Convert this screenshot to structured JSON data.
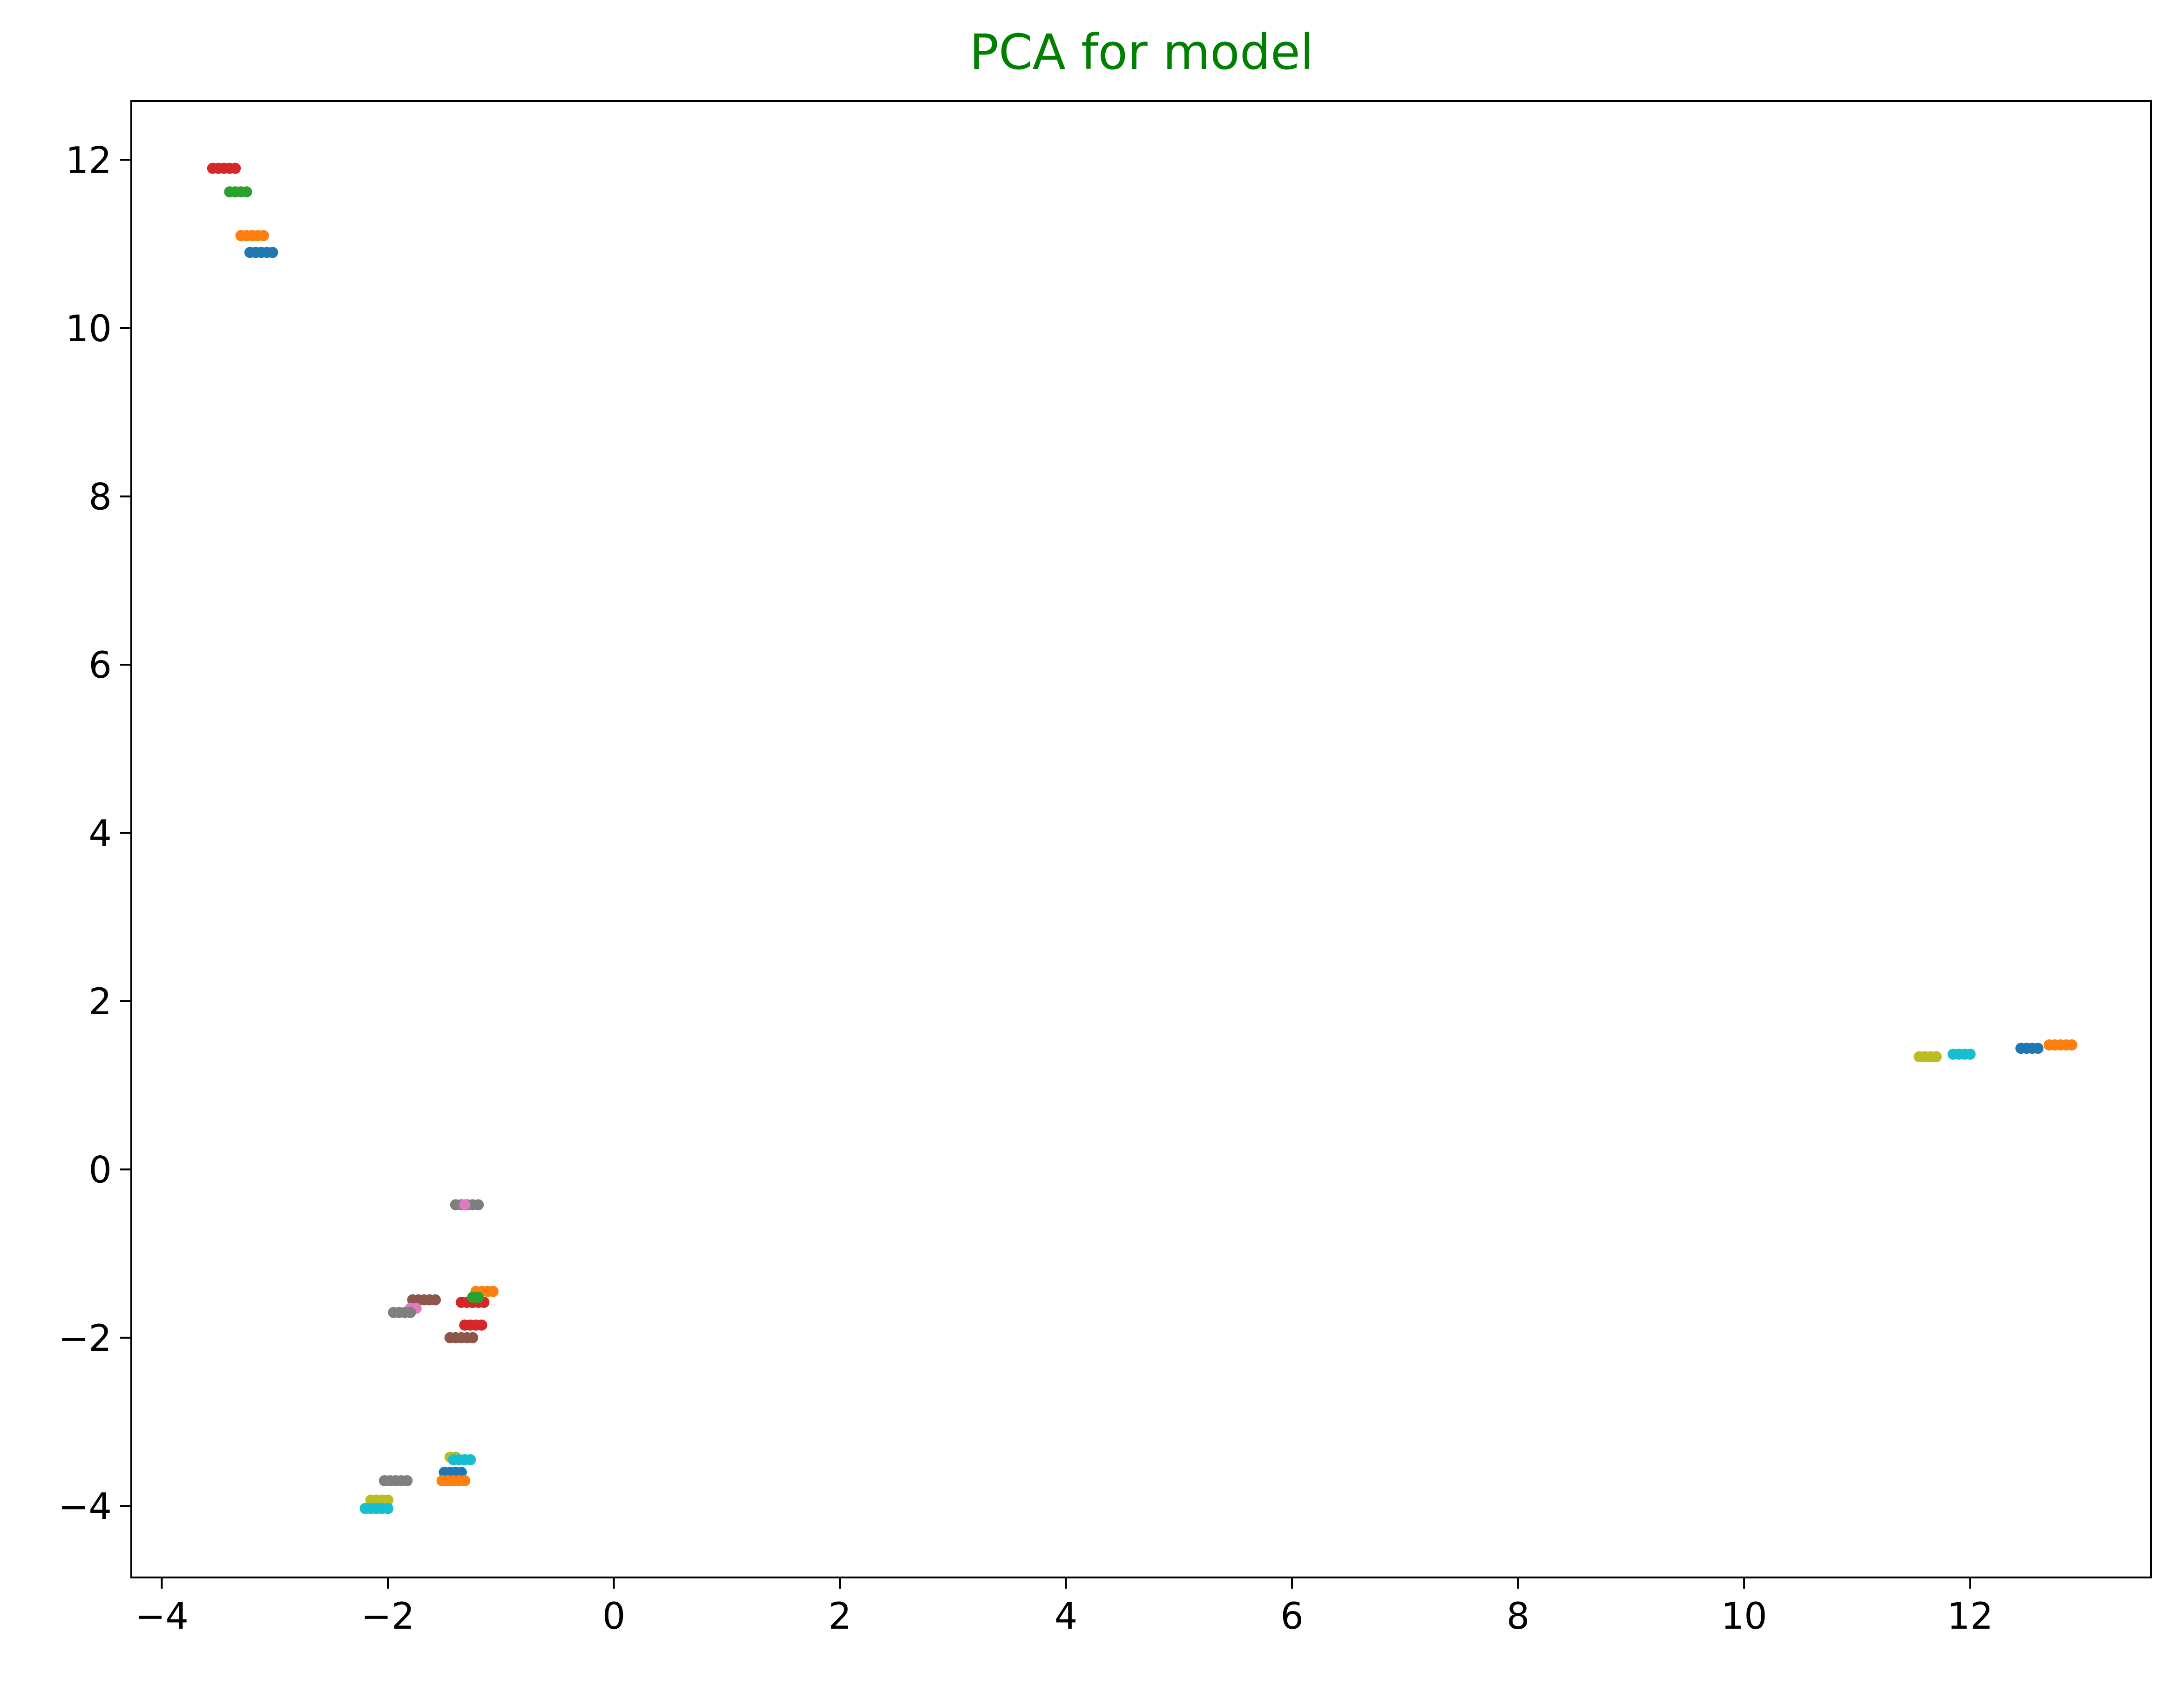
{
  "chart_data": {
    "type": "scatter",
    "title": "PCA for model",
    "title_color": "#008000",
    "xlabel": "",
    "ylabel": "",
    "xlim": [
      -4.27,
      13.6
    ],
    "ylim": [
      -4.85,
      12.7
    ],
    "xticks": [
      -4,
      -2,
      0,
      2,
      4,
      6,
      8,
      10,
      12
    ],
    "xtick_labels": [
      "−4",
      "−2",
      "0",
      "2",
      "4",
      "6",
      "8",
      "10",
      "12"
    ],
    "yticks": [
      -4,
      -2,
      0,
      2,
      4,
      6,
      8,
      10,
      12
    ],
    "ytick_labels": [
      "−4",
      "−2",
      "0",
      "2",
      "4",
      "6",
      "8",
      "10",
      "12"
    ],
    "grid": false,
    "legend": "none",
    "palette": [
      "#1f77b4",
      "#ff7f0e",
      "#2ca02c",
      "#d62728",
      "#9467bd",
      "#8c564b",
      "#e377c2",
      "#7f7f7f",
      "#bcbd22",
      "#17becf"
    ],
    "series": [
      {
        "color": "#d62728",
        "x": [
          -3.55,
          -3.5,
          -3.45,
          -3.4,
          -3.35
        ],
        "y": [
          11.9,
          11.9,
          11.9,
          11.9,
          11.9
        ]
      },
      {
        "color": "#2ca02c",
        "x": [
          -3.4,
          -3.35,
          -3.3,
          -3.25
        ],
        "y": [
          11.62,
          11.62,
          11.62,
          11.62
        ]
      },
      {
        "color": "#ff7f0e",
        "x": [
          -3.3,
          -3.25,
          -3.2,
          -3.15,
          -3.1
        ],
        "y": [
          11.1,
          11.1,
          11.1,
          11.1,
          11.1
        ]
      },
      {
        "color": "#1f77b4",
        "x": [
          -3.22,
          -3.17,
          -3.12,
          -3.07,
          -3.02
        ],
        "y": [
          10.9,
          10.9,
          10.9,
          10.9,
          10.9
        ]
      },
      {
        "color": "#7f7f7f",
        "x": [
          -1.4,
          -1.35,
          -1.3,
          -1.25,
          -1.2
        ],
        "y": [
          -0.42,
          -0.42,
          -0.42,
          -0.42,
          -0.42
        ]
      },
      {
        "color": "#e377c2",
        "x": [
          -1.32
        ],
        "y": [
          -0.42
        ]
      },
      {
        "color": "#d62728",
        "x": [
          -1.35,
          -1.3,
          -1.25,
          -1.2,
          -1.15
        ],
        "y": [
          -1.58,
          -1.58,
          -1.58,
          -1.58,
          -1.58
        ]
      },
      {
        "color": "#ff7f0e",
        "x": [
          -1.22,
          -1.17,
          -1.12,
          -1.07
        ],
        "y": [
          -1.45,
          -1.45,
          -1.45,
          -1.45
        ]
      },
      {
        "color": "#2ca02c",
        "x": [
          -1.25,
          -1.2
        ],
        "y": [
          -1.52,
          -1.52
        ]
      },
      {
        "color": "#8c564b",
        "x": [
          -1.78,
          -1.73,
          -1.68,
          -1.63,
          -1.58
        ],
        "y": [
          -1.55,
          -1.55,
          -1.55,
          -1.55,
          -1.55
        ]
      },
      {
        "color": "#e377c2",
        "x": [
          -1.8,
          -1.75
        ],
        "y": [
          -1.65,
          -1.65
        ]
      },
      {
        "color": "#7f7f7f",
        "x": [
          -1.95,
          -1.9,
          -1.85,
          -1.8
        ],
        "y": [
          -1.7,
          -1.7,
          -1.7,
          -1.7
        ]
      },
      {
        "color": "#d62728",
        "x": [
          -1.32,
          -1.27,
          -1.22,
          -1.17
        ],
        "y": [
          -1.85,
          -1.85,
          -1.85,
          -1.85
        ]
      },
      {
        "color": "#8c564b",
        "x": [
          -1.45,
          -1.4,
          -1.35,
          -1.3,
          -1.25
        ],
        "y": [
          -2.0,
          -2.0,
          -2.0,
          -2.0,
          -2.0
        ]
      },
      {
        "color": "#bcbd22",
        "x": [
          -1.45,
          -1.4
        ],
        "y": [
          -3.42,
          -3.42
        ]
      },
      {
        "color": "#17becf",
        "x": [
          -1.42,
          -1.37,
          -1.32,
          -1.27
        ],
        "y": [
          -3.45,
          -3.45,
          -3.45,
          -3.45
        ]
      },
      {
        "color": "#1f77b4",
        "x": [
          -1.5,
          -1.45,
          -1.4,
          -1.35
        ],
        "y": [
          -3.6,
          -3.6,
          -3.6,
          -3.6
        ]
      },
      {
        "color": "#ff7f0e",
        "x": [
          -1.52,
          -1.47,
          -1.42,
          -1.37,
          -1.32
        ],
        "y": [
          -3.7,
          -3.7,
          -3.7,
          -3.7,
          -3.7
        ]
      },
      {
        "color": "#7f7f7f",
        "x": [
          -2.03,
          -1.98,
          -1.93,
          -1.88,
          -1.83
        ],
        "y": [
          -3.7,
          -3.7,
          -3.7,
          -3.7,
          -3.7
        ]
      },
      {
        "color": "#bcbd22",
        "x": [
          -2.15,
          -2.1,
          -2.05,
          -2.0
        ],
        "y": [
          -3.93,
          -3.93,
          -3.93,
          -3.93
        ]
      },
      {
        "color": "#17becf",
        "x": [
          -2.2,
          -2.15,
          -2.1,
          -2.05,
          -2.0
        ],
        "y": [
          -4.03,
          -4.03,
          -4.03,
          -4.03,
          -4.03
        ]
      },
      {
        "color": "#bcbd22",
        "x": [
          11.55,
          11.6,
          11.65,
          11.7
        ],
        "y": [
          1.34,
          1.34,
          1.34,
          1.34
        ]
      },
      {
        "color": "#17becf",
        "x": [
          11.85,
          11.9,
          11.95,
          12.0
        ],
        "y": [
          1.37,
          1.37,
          1.37,
          1.37
        ]
      },
      {
        "color": "#1f77b4",
        "x": [
          12.45,
          12.5,
          12.55,
          12.6
        ],
        "y": [
          1.44,
          1.44,
          1.44,
          1.44
        ]
      },
      {
        "color": "#ff7f0e",
        "x": [
          12.7,
          12.75,
          12.8,
          12.85,
          12.9
        ],
        "y": [
          1.48,
          1.48,
          1.48,
          1.48,
          1.48
        ]
      }
    ]
  }
}
